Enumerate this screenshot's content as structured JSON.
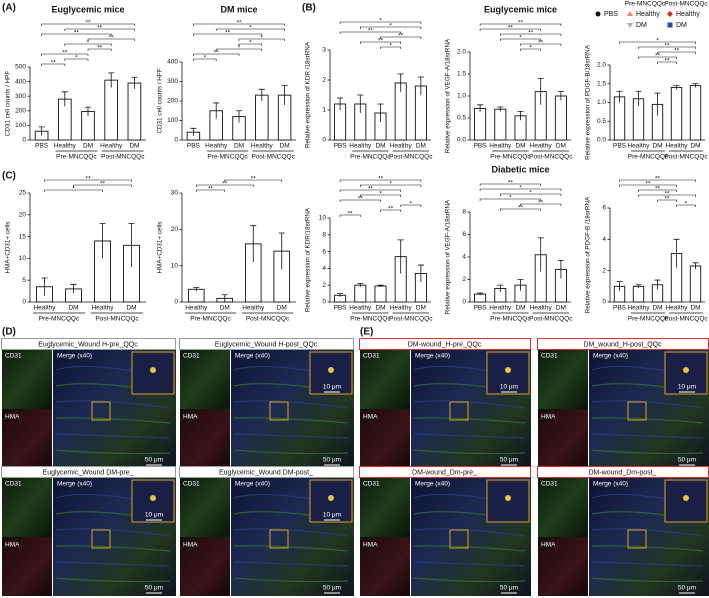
{
  "chart_data": [
    {
      "type": "bar",
      "title": "Euglycemic mice",
      "ylabel": "CD31 cell counts / HPF",
      "categories": [
        "PBS",
        "Healthy",
        "DM",
        "Healthy",
        "DM"
      ],
      "groups": [
        {
          "label": "Pre-MNCQQc",
          "span": [
            1,
            2
          ]
        },
        {
          "label": "Post-MNCQQc",
          "span": [
            3,
            4
          ]
        }
      ],
      "values": [
        60,
        280,
        195,
        410,
        390
      ],
      "errors": [
        30,
        50,
        30,
        50,
        40
      ],
      "ylim": [
        0,
        500
      ],
      "yticks": [
        0,
        100,
        200,
        300,
        400,
        500
      ],
      "brackets": [
        {
          "pair": [
            0,
            1
          ],
          "label": "**"
        },
        {
          "pair": [
            1,
            2
          ],
          "label": "*"
        },
        {
          "pair": [
            0,
            2
          ],
          "label": "**"
        },
        {
          "pair": [
            2,
            3
          ],
          "label": "**"
        },
        {
          "pair": [
            1,
            3
          ],
          "label": "*"
        },
        {
          "pair": [
            2,
            4
          ],
          "label": "**"
        },
        {
          "pair": [
            0,
            3
          ],
          "label": "**"
        },
        {
          "pair": [
            1,
            4
          ],
          "label": "**"
        },
        {
          "pair": [
            0,
            4
          ],
          "label": "**"
        }
      ]
    },
    {
      "type": "bar",
      "title": "DM mice",
      "ylabel": "CD31 cell counts / HFF",
      "categories": [
        "PBS",
        "Healthy",
        "DM",
        "Healthy",
        "DM"
      ],
      "groups": [
        {
          "label": "Pre-MNCQQc",
          "span": [
            1,
            2
          ]
        },
        {
          "label": "Post-MNCQQc",
          "span": [
            3,
            4
          ]
        }
      ],
      "values": [
        40,
        150,
        120,
        230,
        230
      ],
      "errors": [
        20,
        40,
        30,
        30,
        50
      ],
      "ylim": [
        0,
        400
      ],
      "yticks": [
        0,
        100,
        200,
        300,
        400
      ],
      "brackets": [
        {
          "pair": [
            0,
            1
          ],
          "label": "*"
        },
        {
          "pair": [
            0,
            2
          ],
          "label": "**"
        },
        {
          "pair": [
            1,
            3
          ],
          "label": "*"
        },
        {
          "pair": [
            2,
            3
          ],
          "label": "*"
        },
        {
          "pair": [
            2,
            4
          ],
          "label": "*"
        },
        {
          "pair": [
            0,
            3
          ],
          "label": "**"
        },
        {
          "pair": [
            1,
            4
          ],
          "label": "*"
        },
        {
          "pair": [
            0,
            4
          ],
          "label": "**"
        }
      ]
    },
    {
      "type": "bar",
      "ylabel": "Relative expression of KDR /18srRNA",
      "categories": [
        "PBS",
        "Healthy",
        "DM",
        "Healthy",
        "DM"
      ],
      "groups": [
        {
          "label": "Pre-MNCQQc",
          "span": [
            1,
            2
          ]
        },
        {
          "label": "Post-MNCQQc",
          "span": [
            3,
            4
          ]
        }
      ],
      "values": [
        1.2,
        1.2,
        0.9,
        1.9,
        1.8
      ],
      "errors": [
        0.2,
        0.3,
        0.3,
        0.3,
        0.3
      ],
      "ylim": [
        0,
        3
      ],
      "yticks": [
        0,
        1,
        2,
        3
      ],
      "brackets": [
        {
          "pair": [
            2,
            3
          ],
          "label": "*"
        },
        {
          "pair": [
            1,
            3
          ],
          "label": "**"
        },
        {
          "pair": [
            2,
            4
          ],
          "label": "**"
        },
        {
          "pair": [
            0,
            3
          ],
          "label": "**"
        },
        {
          "pair": [
            1,
            4
          ],
          "label": "*"
        },
        {
          "pair": [
            0,
            4
          ],
          "label": "*"
        }
      ]
    },
    {
      "type": "bar",
      "title": "Euglycemic mice",
      "ylabel": "Relative expression of VEGF-A/18srRNA",
      "categories": [
        "PBS",
        "Healthy",
        "DM",
        "Healthy",
        "DM"
      ],
      "groups": [
        {
          "label": "Pre-MNCQQc",
          "span": [
            1,
            2
          ]
        },
        {
          "label": "Post-MNCQQc",
          "span": [
            3,
            4
          ]
        }
      ],
      "values": [
        0.72,
        0.7,
        0.55,
        1.1,
        1.0
      ],
      "errors": [
        0.08,
        0.05,
        0.1,
        0.3,
        0.1
      ],
      "ylim": [
        0,
        2
      ],
      "yticks": [
        {
          "value": 0,
          "label": "0.0"
        },
        {
          "value": 0.5,
          "label": "0.5"
        },
        {
          "value": 1,
          "label": "1.0"
        },
        {
          "value": 1.5,
          "label": "1.5"
        },
        {
          "value": 2,
          "label": "2.0"
        }
      ],
      "brackets": [
        {
          "pair": [
            2,
            3
          ],
          "label": "*"
        },
        {
          "pair": [
            2,
            4
          ],
          "label": "**"
        },
        {
          "pair": [
            1,
            3
          ],
          "label": "*"
        },
        {
          "pair": [
            1,
            4
          ],
          "label": "**"
        },
        {
          "pair": [
            0,
            3
          ],
          "label": "**"
        },
        {
          "pair": [
            0,
            4
          ],
          "label": "**"
        }
      ]
    },
    {
      "type": "bar",
      "ylabel": "Relative expression of PDGF-B/18srRNA",
      "categories": [
        "PBS",
        "Healthy",
        "DM",
        "Healthy",
        "DM"
      ],
      "groups": [
        {
          "label": "Pre-MNCQQc",
          "span": [
            1,
            2
          ]
        },
        {
          "label": "Post-MNCQQc",
          "span": [
            3,
            4
          ]
        }
      ],
      "values": [
        1.15,
        1.1,
        0.95,
        1.4,
        1.45
      ],
      "errors": [
        0.15,
        0.2,
        0.3,
        0.05,
        0.05
      ],
      "ylim": [
        0,
        2
      ],
      "yticks": [
        {
          "value": 0,
          "label": "0.0"
        },
        {
          "value": 0.5,
          "label": "0.5"
        },
        {
          "value": 1,
          "label": "1.0"
        },
        {
          "value": 1.5,
          "label": "1.5"
        },
        {
          "value": 2,
          "label": "2.0"
        }
      ],
      "brackets": [
        {
          "pair": [
            2,
            3
          ],
          "label": "**"
        },
        {
          "pair": [
            1,
            3
          ],
          "label": "**"
        },
        {
          "pair": [
            2,
            4
          ],
          "label": "**"
        },
        {
          "pair": [
            1,
            4
          ],
          "label": "**"
        },
        {
          "pair": [
            0,
            4
          ],
          "label": "*"
        }
      ]
    },
    {
      "type": "bar",
      "ylabel": "HMA+CD31+ cells",
      "categories": [
        "Healthy",
        "DM",
        "Healthy",
        "DM"
      ],
      "groups": [
        {
          "label": "Pre-MNCQQc",
          "span": [
            0,
            1
          ]
        },
        {
          "label": "Post-MNCQQc",
          "span": [
            2,
            3
          ]
        }
      ],
      "values": [
        3.5,
        3,
        14,
        13
      ],
      "errors": [
        2,
        1,
        4,
        5
      ],
      "ylim": [
        0,
        25
      ],
      "yticks": [
        0,
        5,
        10,
        15,
        20,
        25
      ],
      "brackets": [
        {
          "pair": [
            0,
            2
          ],
          "label": "*"
        },
        {
          "pair": [
            1,
            3
          ],
          "label": "**"
        },
        {
          "pair": [
            0,
            3
          ],
          "label": "**"
        }
      ]
    },
    {
      "type": "bar",
      "ylabel": "HMA+CD31+ cells",
      "categories": [
        "Healthy",
        "DM",
        "Healthy",
        "DM"
      ],
      "groups": [
        {
          "label": "Pre-MNCQQc",
          "span": [
            0,
            1
          ]
        },
        {
          "label": "Post-MNCQQc",
          "span": [
            2,
            3
          ]
        }
      ],
      "values": [
        3.5,
        1,
        16,
        14
      ],
      "errors": [
        0.5,
        1,
        5,
        5
      ],
      "ylim": [
        0,
        30
      ],
      "yticks": [
        0,
        10,
        20,
        30
      ],
      "brackets": [
        {
          "pair": [
            0,
            1
          ],
          "label": "**"
        },
        {
          "pair": [
            0,
            2
          ],
          "label": "**"
        },
        {
          "pair": [
            1,
            3
          ],
          "label": "**"
        }
      ]
    },
    {
      "type": "bar",
      "ylabel": "Relative expression of KDR/18srRNA",
      "categories": [
        "PBS",
        "Healthy",
        "DM",
        "Healthy",
        "DM"
      ],
      "groups": [
        {
          "label": "Pre-MNCQQc",
          "span": [
            1,
            2
          ]
        },
        {
          "label": "Post-MNCQQc",
          "span": [
            3,
            4
          ]
        }
      ],
      "values": [
        0.8,
        2.0,
        1.9,
        5.4,
        3.4
      ],
      "errors": [
        0.2,
        0.2,
        0.1,
        2,
        1
      ],
      "ylim": [
        0,
        10
      ],
      "yticks": [
        0,
        2,
        4,
        6,
        8,
        10
      ],
      "brackets": [
        {
          "pair": [
            0,
            1
          ],
          "label": "**"
        },
        {
          "pair": [
            2,
            3
          ],
          "label": "**"
        },
        {
          "pair": [
            3,
            4
          ],
          "label": "*"
        },
        {
          "pair": [
            0,
            2
          ],
          "label": "**"
        },
        {
          "pair": [
            1,
            3
          ],
          "label": "*"
        },
        {
          "pair": [
            0,
            3
          ],
          "label": "**"
        },
        {
          "pair": [
            1,
            4
          ],
          "label": "*"
        },
        {
          "pair": [
            0,
            4
          ],
          "label": "**"
        }
      ]
    },
    {
      "type": "bar",
      "title": "Diabetic mice",
      "ylabel": "Relative expression of VEGF-A/18srRNA",
      "categories": [
        "PBS",
        "Healthy",
        "DM",
        "Healthy",
        "DM"
      ],
      "groups": [
        {
          "label": "Pre-MNCQQc",
          "span": [
            1,
            2
          ]
        },
        {
          "label": "Post-MNCQQc",
          "span": [
            3,
            4
          ]
        }
      ],
      "values": [
        0.7,
        1.2,
        1.5,
        4.2,
        2.9
      ],
      "errors": [
        0.1,
        0.3,
        0.5,
        1.5,
        0.8
      ],
      "ylim": [
        0,
        8
      ],
      "yticks": [
        0,
        2,
        4,
        6,
        8
      ],
      "brackets": [
        {
          "pair": [
            1,
            3
          ],
          "label": "**"
        },
        {
          "pair": [
            2,
            4
          ],
          "label": "**"
        },
        {
          "pair": [
            0,
            3
          ],
          "label": "*"
        },
        {
          "pair": [
            1,
            4
          ],
          "label": "*"
        },
        {
          "pair": [
            0,
            4
          ],
          "label": "*"
        },
        {
          "pair": [
            0,
            3
          ],
          "label": "**"
        }
      ]
    },
    {
      "type": "bar",
      "ylabel": "Relative expression of PDGF-B /18srRNA",
      "categories": [
        "PBS",
        "Healthy",
        "DM",
        "Healthy",
        "DM"
      ],
      "groups": [
        {
          "label": "Pre-MNCQQc",
          "span": [
            1,
            2
          ]
        },
        {
          "label": "Post-MNCQQc",
          "span": [
            3,
            4
          ]
        }
      ],
      "values": [
        1,
        1,
        1.1,
        3.1,
        2.3
      ],
      "errors": [
        0.3,
        0.1,
        0.3,
        0.9,
        0.2
      ],
      "ylim": [
        0,
        6
      ],
      "yticks": [
        0,
        2,
        4,
        6
      ],
      "brackets": [
        {
          "pair": [
            3,
            4
          ],
          "label": "*"
        },
        {
          "pair": [
            2,
            3
          ],
          "label": "**"
        },
        {
          "pair": [
            1,
            4
          ],
          "label": "**"
        },
        {
          "pair": [
            1,
            3
          ],
          "label": "**"
        },
        {
          "pair": [
            0,
            3
          ],
          "label": "**"
        },
        {
          "pair": [
            0,
            4
          ],
          "label": "**"
        }
      ]
    }
  ],
  "legend": {
    "groups": [
      "Pre-MNCQQc",
      "Post-MNCQQc"
    ],
    "items": [
      {
        "name": "PBS",
        "color": "#111111"
      },
      {
        "name": "Healthy",
        "color": "#e8837a"
      },
      {
        "name": "DM",
        "color": "#8fb3e0"
      },
      {
        "name": "Healthy",
        "color": "#d62728"
      },
      {
        "name": "DM",
        "color": "#1f4fa8"
      }
    ]
  },
  "panel_labels": [
    "(A)",
    "(B)",
    "(C)",
    "(D)",
    "(E)"
  ],
  "image_labels": {
    "cd31": "CD31",
    "hma": "HMA",
    "merge": "Merge (x40)"
  },
  "micrographs": [
    {
      "title": "Euglycemic_Wound H-pre_QQc",
      "scales": [
        "50 μm"
      ]
    },
    {
      "title": "Euglycemic_Wound H-post_QQc",
      "scales": [
        "10 μm",
        "50 μm"
      ]
    },
    {
      "title": "Euglycemic_Wound DM-pre_",
      "scales": [
        "10 μm",
        "50 μm"
      ]
    },
    {
      "title": "Euglycemic_Wound DM-post_",
      "scales": [
        "10 μm",
        "50 μm"
      ]
    },
    {
      "title": "DM-wound_H-pre_QQc",
      "scales": [
        "10 μm",
        "50 μm"
      ]
    },
    {
      "title": "DM_wound_H-post_QQc",
      "scales": [
        "10 μm",
        "50 μm"
      ]
    },
    {
      "title": "DM-wound_Dm-pre_",
      "scales": [
        "50 μm"
      ]
    },
    {
      "title": "DM-wound_Dm-post_",
      "scales": [
        "50 μm"
      ]
    }
  ]
}
